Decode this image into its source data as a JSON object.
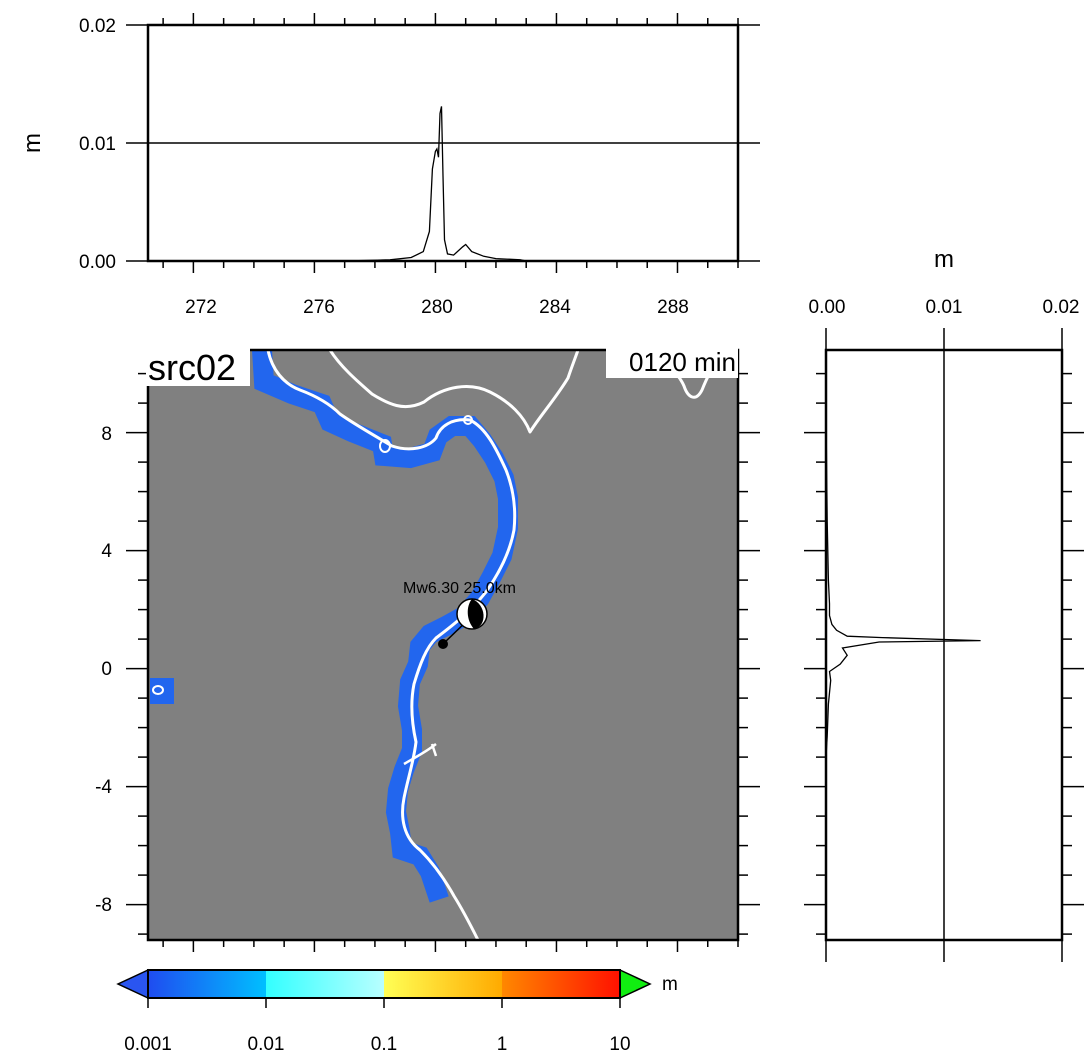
{
  "chart_data": [
    {
      "name": "top-profile",
      "type": "line",
      "ylabel": "m",
      "xlim": [
        270.5,
        290
      ],
      "ylim": [
        0,
        0.02
      ],
      "x_ticks": [
        "272",
        "276",
        "280",
        "284",
        "288"
      ],
      "y_ticks": [
        "0.00",
        "0.01",
        "0.02"
      ],
      "grid_lines_y": [
        0.01
      ],
      "series": [
        {
          "x": [
            270.5,
            277.0,
            278.5,
            279.2,
            279.6,
            279.8,
            279.9,
            280.0,
            280.05,
            280.1,
            280.15,
            280.2,
            280.25,
            280.3,
            280.4,
            280.6,
            280.9,
            281.0,
            281.2,
            281.6,
            282.0,
            282.8,
            283.0,
            290.0
          ],
          "y": [
            0,
            0,
            0.0001,
            0.0003,
            0.0008,
            0.0025,
            0.0078,
            0.0093,
            0.0095,
            0.0088,
            0.0125,
            0.0131,
            0.0072,
            0.0018,
            0.0006,
            0.0005,
            0.0012,
            0.0014,
            0.0008,
            0.0004,
            0.0002,
            0.0001,
            0,
            0
          ]
        }
      ]
    },
    {
      "name": "map",
      "type": "heatmap",
      "title": "src02",
      "time_label": "0120 min",
      "xlim": [
        270.5,
        290
      ],
      "ylim": [
        -9.2,
        10.8
      ],
      "y_ticks": [
        "8",
        "4",
        "0",
        "-4",
        "-8"
      ],
      "land_color": "#808080",
      "coast_color": "#ffffff",
      "inundation_color": "#2266ee",
      "event": {
        "label": "Mw6.30  25.0km",
        "epicenter": [
          280.3,
          0.8
        ],
        "beachball": [
          281.2,
          1.8
        ]
      }
    },
    {
      "name": "right-profile",
      "type": "line",
      "xlabel": "m",
      "xlim": [
        0,
        0.02
      ],
      "ylim": [
        -9.2,
        10.8
      ],
      "x_ticks": [
        "0.00",
        "0.01",
        "0.02"
      ],
      "grid_lines_x": [
        0.01
      ],
      "series": [
        {
          "x": [
            0,
            0,
            0.0001,
            0.0002,
            0.0003,
            0.0003,
            0.0005,
            0.0009,
            0.0018,
            0.0048,
            0.0131,
            0.0045,
            0.0014,
            0.0018,
            0.0012,
            0.0003,
            0.0004,
            0.0002,
            0.0001,
            0,
            0
          ],
          "y": [
            10.8,
            8.6,
            5.0,
            3.0,
            2.2,
            1.8,
            1.5,
            1.3,
            1.1,
            1.05,
            0.95,
            0.9,
            0.7,
            0.45,
            0.15,
            -0.1,
            -0.4,
            -1.2,
            -2.3,
            -3.0,
            -9.2
          ]
        }
      ]
    },
    {
      "name": "colorbar",
      "type": "table",
      "unit": "m",
      "ticks": [
        "0.001",
        "0.01",
        "0.1",
        "1",
        "10"
      ],
      "segments": [
        {
          "from": "#1f4cf0",
          "to": "#00bfff"
        },
        {
          "from": "#33ffff",
          "to": "#b8ffff"
        },
        {
          "from": "#ffff55",
          "to": "#ffaa00"
        },
        {
          "from": "#ff8800",
          "to": "#ff1100"
        }
      ],
      "under_color": "#2a55f0",
      "over_color": "#11ee11"
    }
  ]
}
